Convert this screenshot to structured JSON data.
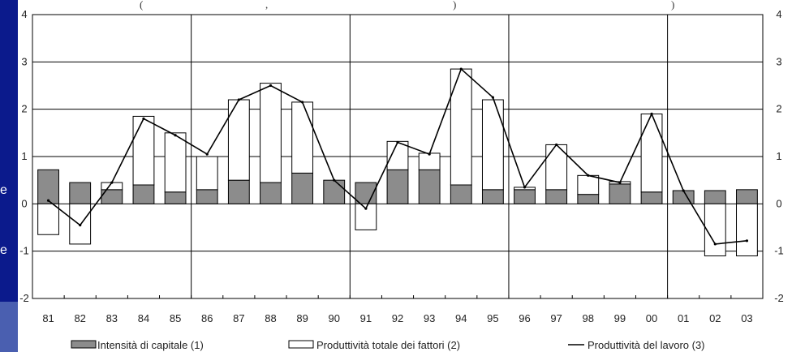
{
  "slide": {
    "left_fragments": [
      "e",
      "e"
    ],
    "subtitle_fragment": "(",
    "subtitle_fragment_2": ",",
    "subtitle_fragment_3": ")"
  },
  "colors": {
    "slide_background": "#0b1a8c",
    "capital_bar": "#8c8c8c",
    "tfp_bar": "#ffffff",
    "outline": "#000000"
  },
  "chart_data": {
    "type": "bar",
    "categories": [
      "81",
      "82",
      "83",
      "84",
      "85",
      "86",
      "87",
      "88",
      "89",
      "90",
      "91",
      "92",
      "93",
      "94",
      "95",
      "96",
      "97",
      "98",
      "99",
      "00",
      "01",
      "02",
      "03"
    ],
    "ylim": [
      -2,
      4
    ],
    "yticks": [
      -2,
      -1,
      0,
      1,
      2,
      3,
      4
    ],
    "series": [
      {
        "name": "Intensità di capitale (1)",
        "kind": "stacked-bar",
        "values": [
          0.72,
          0.45,
          0.3,
          0.4,
          0.25,
          0.3,
          0.5,
          0.45,
          0.65,
          0.5,
          0.45,
          0.72,
          0.72,
          0.4,
          0.3,
          0.3,
          0.3,
          0.2,
          0.42,
          0.25,
          0.28,
          0.28,
          0.3
        ]
      },
      {
        "name": "Produttività totale dei fattori (2)",
        "kind": "stacked-bar",
        "values": [
          -0.65,
          -0.85,
          0.15,
          1.45,
          1.25,
          0.7,
          1.7,
          2.1,
          1.5,
          0.0,
          -0.55,
          0.6,
          0.35,
          2.45,
          1.9,
          0.05,
          0.95,
          0.4,
          0.05,
          1.65,
          0.0,
          -1.1,
          -1.1
        ]
      },
      {
        "name": "Produttività del lavoro (3)",
        "kind": "line",
        "values": [
          0.07,
          -0.45,
          0.45,
          1.8,
          1.45,
          1.05,
          2.2,
          2.5,
          2.15,
          0.5,
          -0.1,
          1.3,
          1.05,
          2.85,
          2.25,
          0.35,
          1.25,
          0.6,
          0.45,
          1.9,
          0.28,
          -0.85,
          -0.78
        ]
      }
    ],
    "vertical_dividers_after": [
      "85",
      "90",
      "95",
      "00"
    ],
    "grid": "horizontal",
    "legend_position": "bottom"
  }
}
